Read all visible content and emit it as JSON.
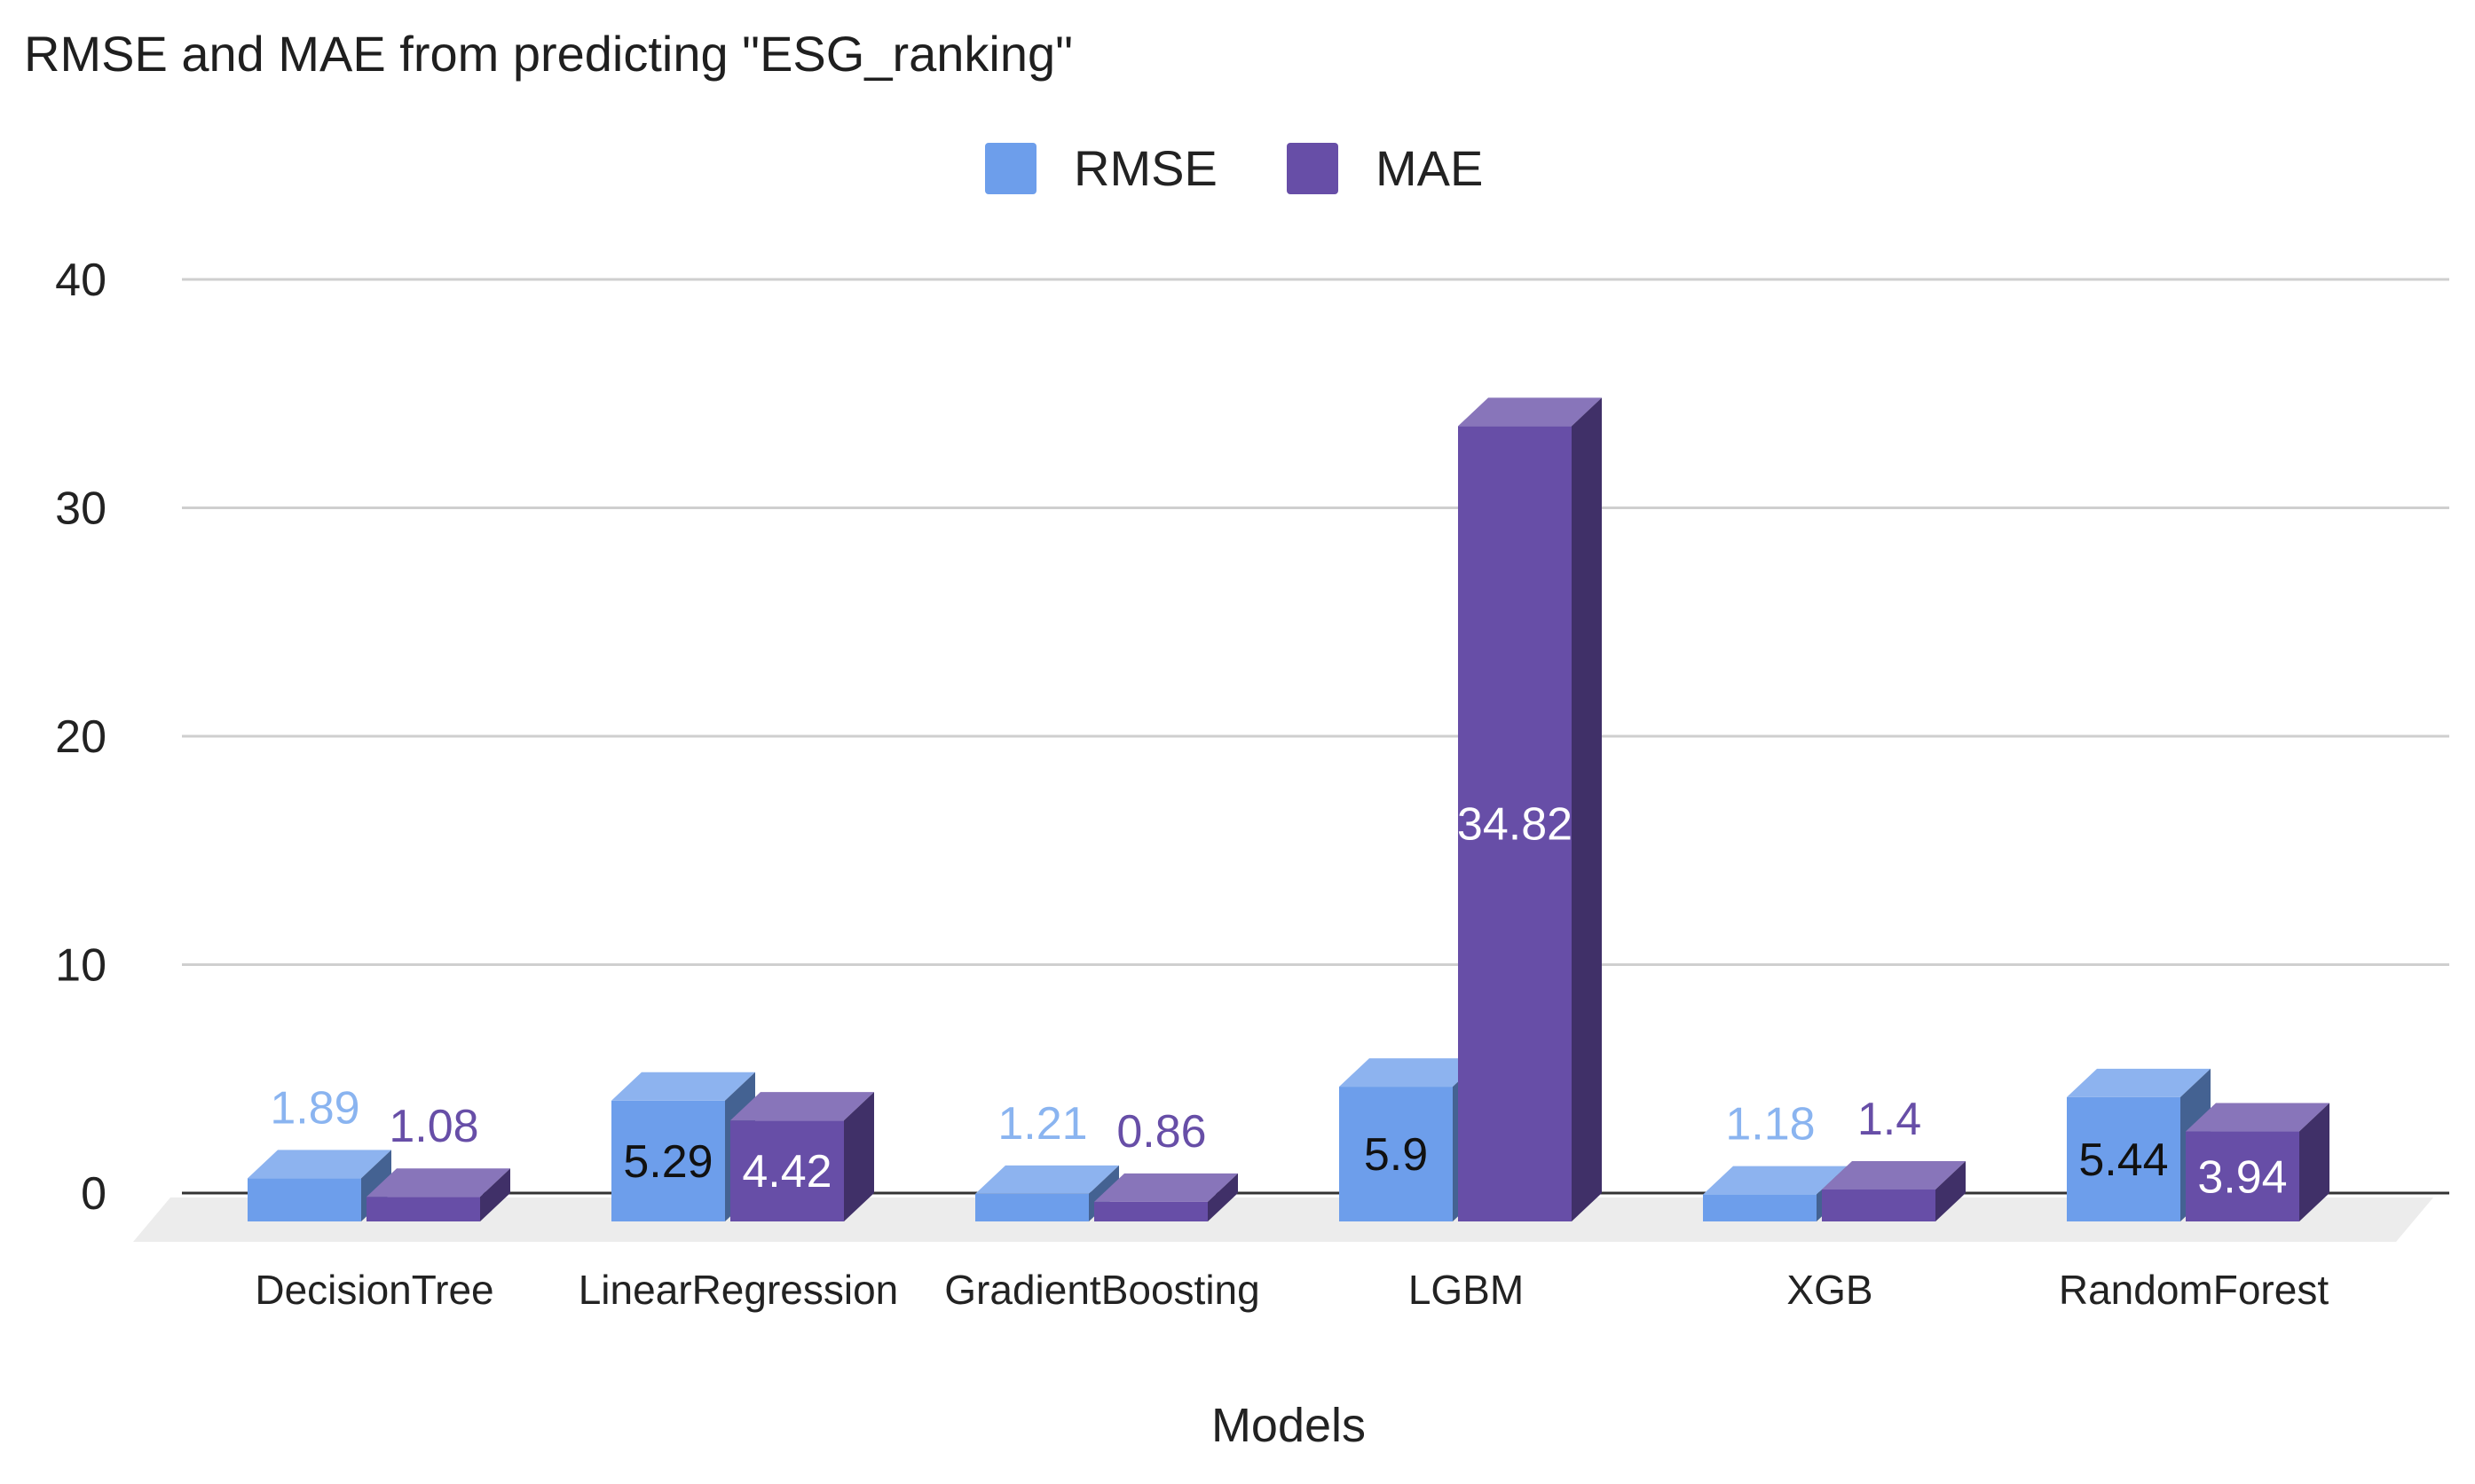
{
  "chart_data": {
    "type": "bar",
    "title": "RMSE and MAE from predicting \"ESG_ranking\"",
    "xlabel": "Models",
    "ylabel": "",
    "ylim": [
      0,
      40
    ],
    "yticks": [
      0,
      10,
      20,
      30,
      40
    ],
    "grid": true,
    "legend_position": "top-center",
    "categories": [
      "DecisionTree",
      "LinearRegression",
      "GradientBoosting",
      "LGBM",
      "XGB",
      "RandomForest"
    ],
    "series": [
      {
        "name": "RMSE",
        "color": "#6d9eeb",
        "values": [
          1.89,
          5.29,
          1.21,
          5.9,
          1.18,
          5.44
        ],
        "labels": [
          "1.89",
          "5.29",
          "1.21",
          "5.9",
          "1.18",
          "5.44"
        ]
      },
      {
        "name": "MAE",
        "color": "#674ea7",
        "values": [
          1.08,
          4.42,
          0.86,
          34.82,
          1.4,
          3.94
        ],
        "labels": [
          "1.08",
          "4.42",
          "0.86",
          "34.82",
          "1.4",
          "3.94"
        ]
      }
    ]
  }
}
